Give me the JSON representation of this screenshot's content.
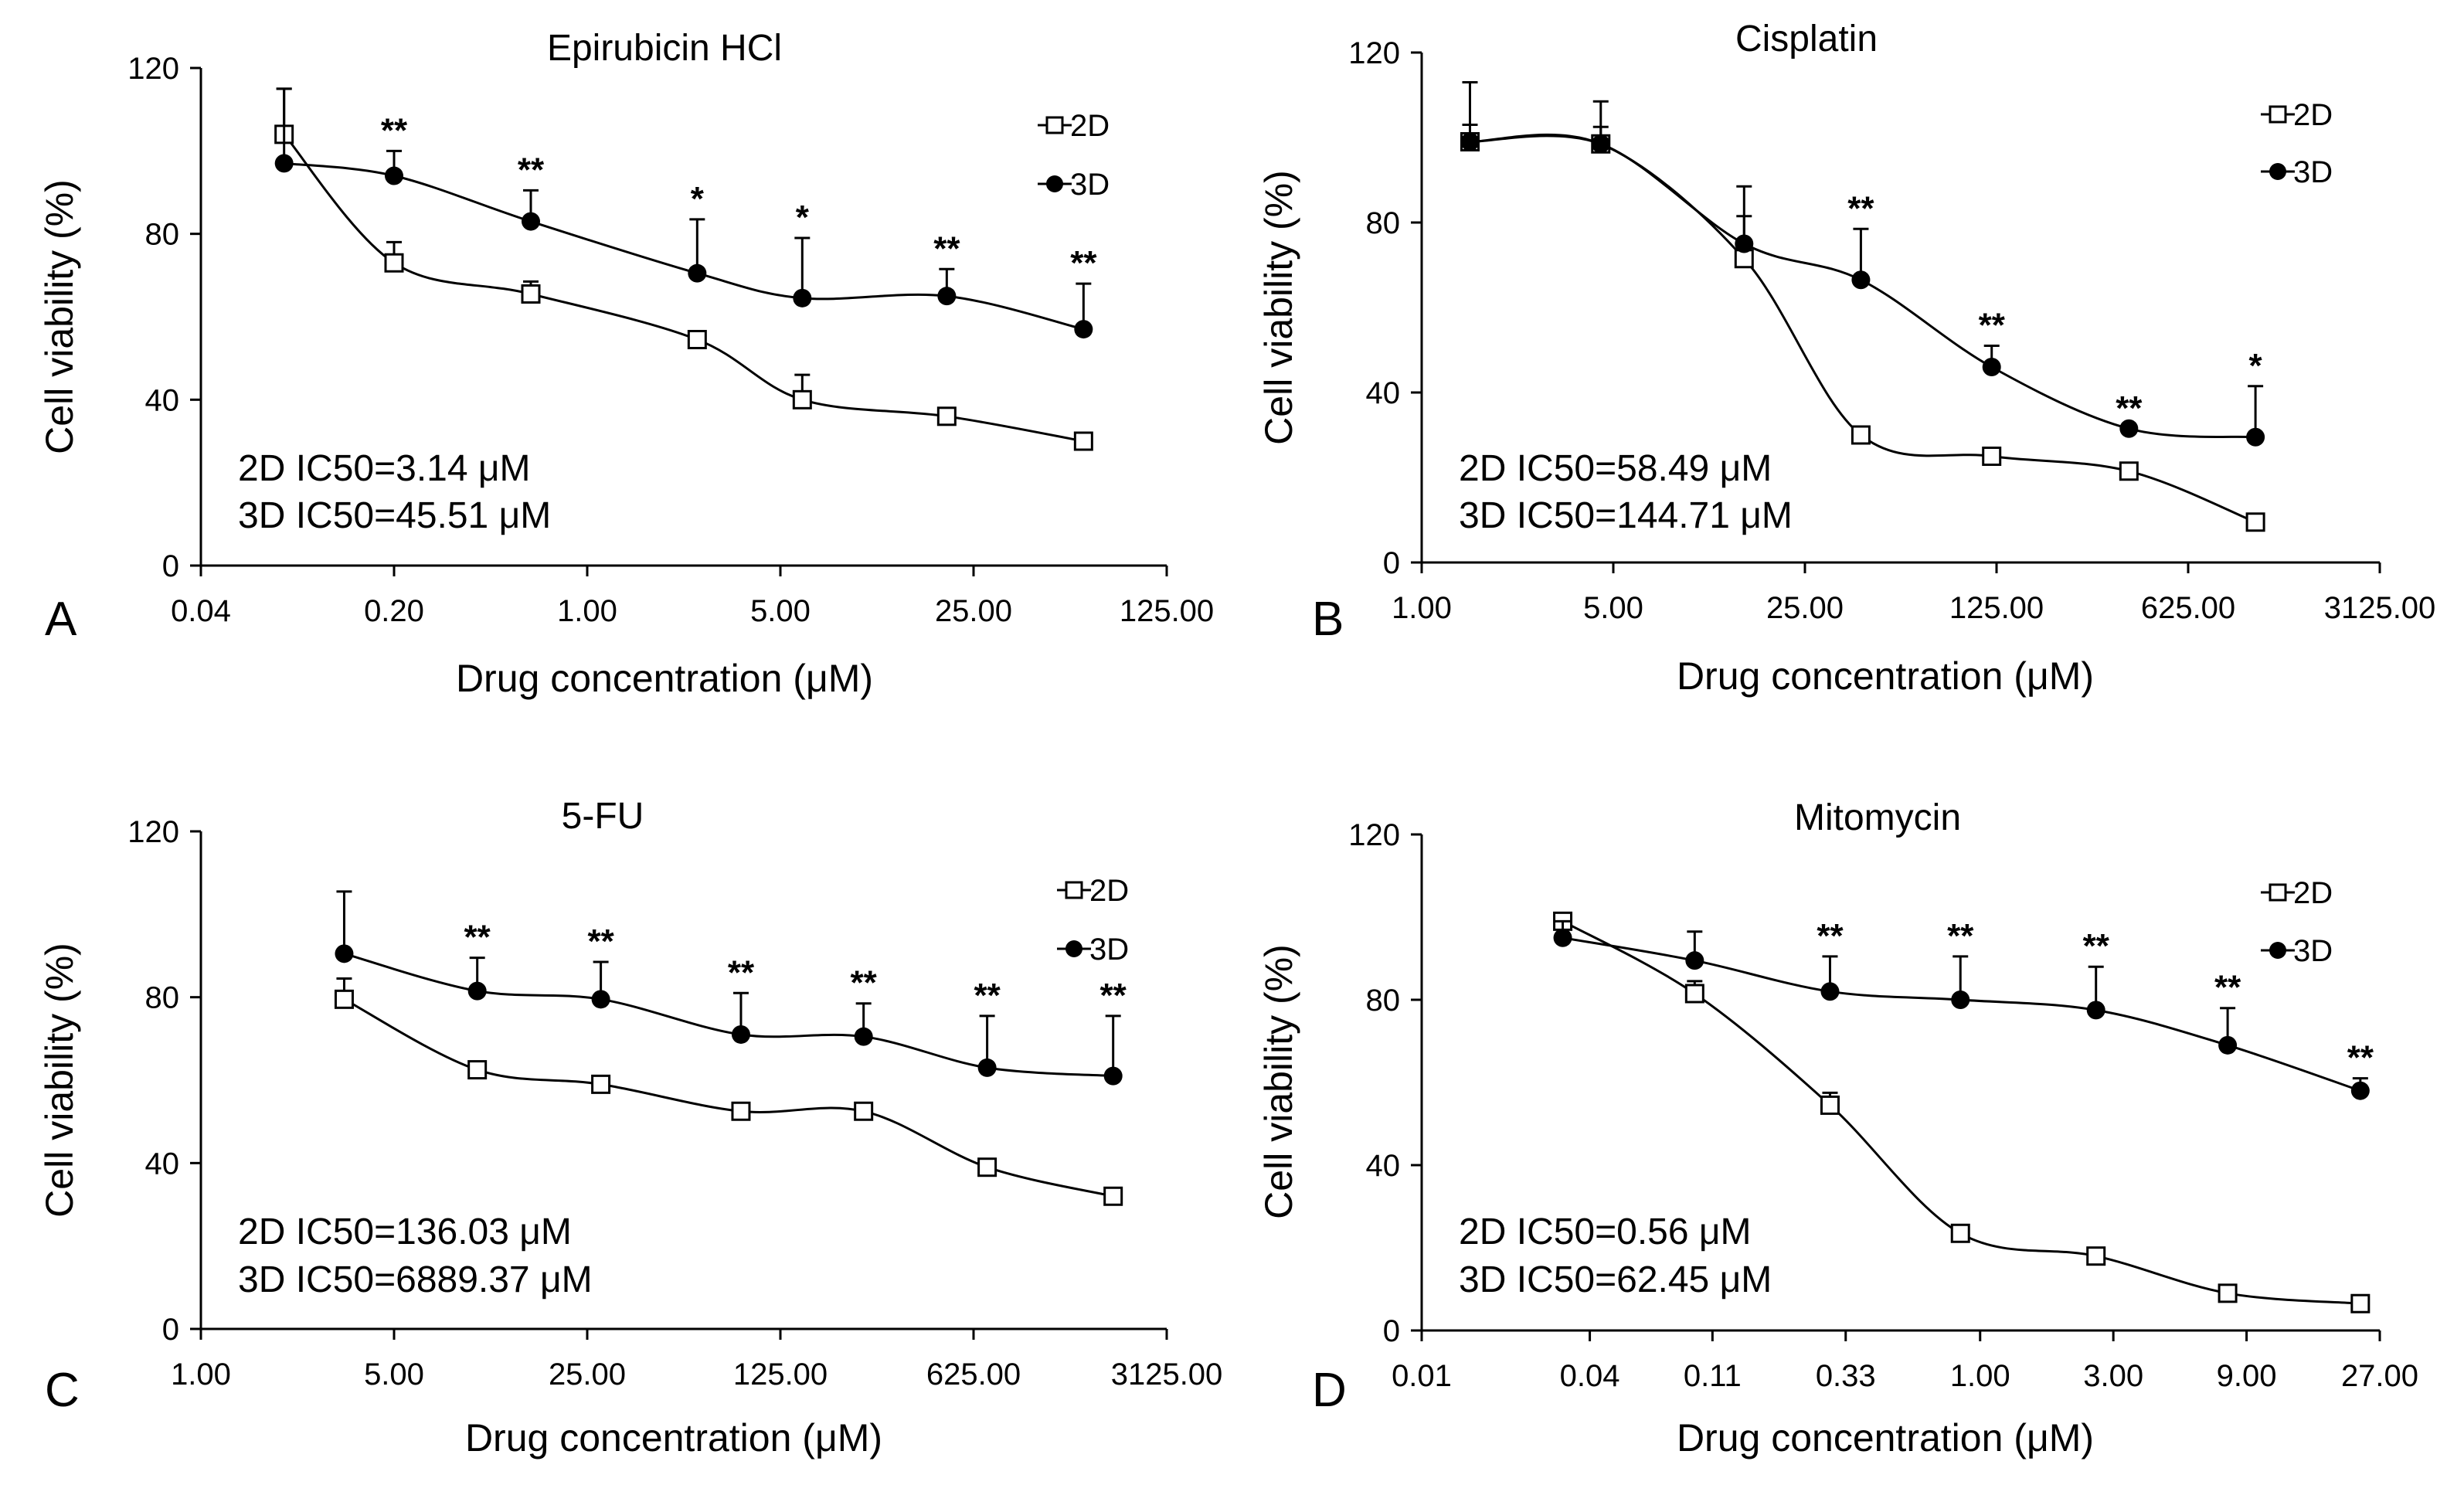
{
  "chart_data": {
    "type": "line",
    "panels": [
      {
        "letter": "A",
        "title": "Epirubicin HCl",
        "xlabel": "Drug concentration (μM)",
        "ylabel": "Cell viability (%)",
        "x_scale": "log",
        "xlim": [
          0.04,
          125
        ],
        "x_ticks": [
          0.04,
          0.2,
          1,
          5,
          25,
          125
        ],
        "x_tick_labels": [
          "0.04",
          "0.20",
          "1.00",
          "5.00",
          "25.00",
          "125.00"
        ],
        "ylim": [
          0,
          120
        ],
        "y_ticks": [
          0,
          40,
          80,
          120
        ],
        "y_tick_labels": [
          "0",
          "40",
          "80",
          "120"
        ],
        "series": [
          {
            "name": "2D",
            "marker": "open-square",
            "x": [
              0.08,
              0.2,
              0.625,
              2.5,
              6,
              20,
              62.5
            ],
            "y": [
              104,
              73,
              65.5,
              54.5,
              40,
              36,
              30
            ],
            "err": [
              11,
              5,
              3,
              2,
              6,
              1,
              0
            ],
            "stars": [
              "",
              "",
              "",
              "",
              "",
              "",
              ""
            ]
          },
          {
            "name": "3D",
            "marker": "filled-circle",
            "x": [
              0.08,
              0.2,
              0.625,
              2.5,
              6,
              20,
              62.5
            ],
            "y": [
              97,
              94,
              83,
              70.5,
              64.5,
              65,
              57
            ],
            "err": [
              18,
              6,
              7.5,
              13,
              14.5,
              6.5,
              11
            ],
            "stars": [
              "",
              "**",
              "**",
              "*",
              "*",
              "**",
              "**"
            ]
          }
        ],
        "ic50": [
          "2D IC50=3.14 μM",
          "3D IC50=45.51 μM"
        ],
        "legend": [
          "2D",
          "3D"
        ]
      },
      {
        "letter": "B",
        "title": "Cisplatin",
        "xlabel": "Drug concentration (μM)",
        "ylabel": "Cell viability (%)",
        "x_scale": "log",
        "xlim": [
          1,
          3125
        ],
        "x_ticks": [
          1,
          5,
          25,
          125,
          625,
          3125
        ],
        "x_tick_labels": [
          "1.00",
          "5.00",
          "25.00",
          "125.00",
          "625.00",
          "3125.00"
        ],
        "ylim": [
          0,
          120
        ],
        "y_ticks": [
          0,
          40,
          80,
          120
        ],
        "y_tick_labels": [
          "0",
          "40",
          "80",
          "120"
        ],
        "series": [
          {
            "name": "2D",
            "marker": "open-square",
            "x": [
              1.5,
              4.5,
              15,
              40,
              120,
              380,
              1100
            ],
            "y": [
              99,
              98.5,
              71.5,
              30,
              25,
              21.5,
              9.5
            ],
            "err": [
              14,
              10,
              10,
              0,
              0,
              0,
              0
            ],
            "stars": [
              "",
              "",
              "",
              "",
              "",
              "",
              ""
            ]
          },
          {
            "name": "3D",
            "marker": "filled-circle",
            "x": [
              1.5,
              4.5,
              15,
              40,
              120,
              380,
              1100
            ],
            "y": [
              99,
              98.5,
              75,
              66.5,
              46,
              31.5,
              29.5
            ],
            "err": [
              4,
              4,
              13.5,
              12,
              5,
              0,
              12
            ],
            "stars": [
              "",
              "",
              "",
              "**",
              "**",
              "**",
              "*"
            ]
          }
        ],
        "ic50": [
          "2D IC50=58.49 μM",
          "3D IC50=144.71 μM"
        ],
        "legend": [
          "2D",
          "3D"
        ]
      },
      {
        "letter": "C",
        "title": "5-FU",
        "xlabel": "Drug concentration (μM)",
        "ylabel": "Cell viability (%)",
        "x_scale": "log",
        "xlim": [
          1,
          3125
        ],
        "x_ticks": [
          1,
          5,
          25,
          125,
          625,
          3125
        ],
        "x_tick_labels": [
          "1.00",
          "5.00",
          "25.00",
          "125.00",
          "625.00",
          "3125.00"
        ],
        "ylim": [
          0,
          120
        ],
        "y_ticks": [
          0,
          40,
          80,
          120
        ],
        "y_tick_labels": [
          "0",
          "40",
          "80",
          "120"
        ],
        "series": [
          {
            "name": "2D",
            "marker": "open-square",
            "x": [
              3.3,
              10,
              28,
              90,
              250,
              700,
              2000
            ],
            "y": [
              79.5,
              62.5,
              59,
              52.5,
              52.5,
              39,
              32
            ],
            "err": [
              5,
              0,
              2,
              0,
              2,
              0,
              0
            ],
            "stars": [
              "",
              "",
              "",
              "",
              "",
              "",
              ""
            ]
          },
          {
            "name": "3D",
            "marker": "filled-circle",
            "x": [
              3.3,
              10,
              28,
              90,
              250,
              700,
              2000
            ],
            "y": [
              90.5,
              81.5,
              79.5,
              71,
              70.5,
              63,
              61
            ],
            "err": [
              15,
              8,
              9,
              10,
              8,
              12.5,
              14.5
            ],
            "stars": [
              "",
              "**",
              "**",
              "**",
              "**",
              "**",
              "**"
            ]
          }
        ],
        "ic50": [
          "2D IC50=136.03 μM",
          "3D IC50=6889.37 μM"
        ],
        "legend": [
          "2D",
          "3D"
        ]
      },
      {
        "letter": "D",
        "title": "Mitomycin",
        "xlabel": "Drug concentration (μM)",
        "ylabel": "Cell viability (%)",
        "x_scale": "log",
        "xlim": [
          0.01,
          27
        ],
        "x_ticks": [
          0.01,
          0.04,
          0.11,
          0.33,
          1,
          3,
          9,
          27
        ],
        "x_tick_labels": [
          "0.01",
          "0.04",
          "0.11",
          "0.33",
          "1.00",
          "3.00",
          "9.00",
          "27.00"
        ],
        "ylim": [
          0,
          120
        ],
        "y_ticks": [
          0,
          40,
          80,
          120
        ],
        "y_tick_labels": [
          "0",
          "40",
          "80",
          "120"
        ],
        "series": [
          {
            "name": "2D",
            "marker": "open-square",
            "x": [
              0.032,
              0.095,
              0.29,
              0.85,
              2.6,
              7.7,
              23
            ],
            "y": [
              99,
              81.5,
              54.5,
              23.5,
              18,
              9,
              6.5
            ],
            "err": [
              0,
              3,
              3,
              0,
              2,
              0,
              0
            ],
            "stars": [
              "",
              "",
              "",
              "",
              "",
              "",
              ""
            ]
          },
          {
            "name": "3D",
            "marker": "filled-circle",
            "x": [
              0.032,
              0.095,
              0.29,
              0.85,
              2.6,
              7.7,
              23
            ],
            "y": [
              95,
              89.5,
              82,
              80,
              77.5,
              69,
              58
            ],
            "err": [
              4,
              7,
              8.5,
              10.5,
              10.5,
              9,
              3
            ],
            "stars": [
              "",
              "",
              "**",
              "**",
              "**",
              "**",
              "**"
            ]
          }
        ],
        "ic50": [
          "2D IC50=0.56 μM",
          "3D IC50=62.45 μM"
        ],
        "legend": [
          "2D",
          "3D"
        ]
      }
    ]
  },
  "colors": {
    "axis": "#000000",
    "marker_fill_2d": "#ffffff",
    "marker_fill_3d": "#000000",
    "background": "#ffffff"
  }
}
